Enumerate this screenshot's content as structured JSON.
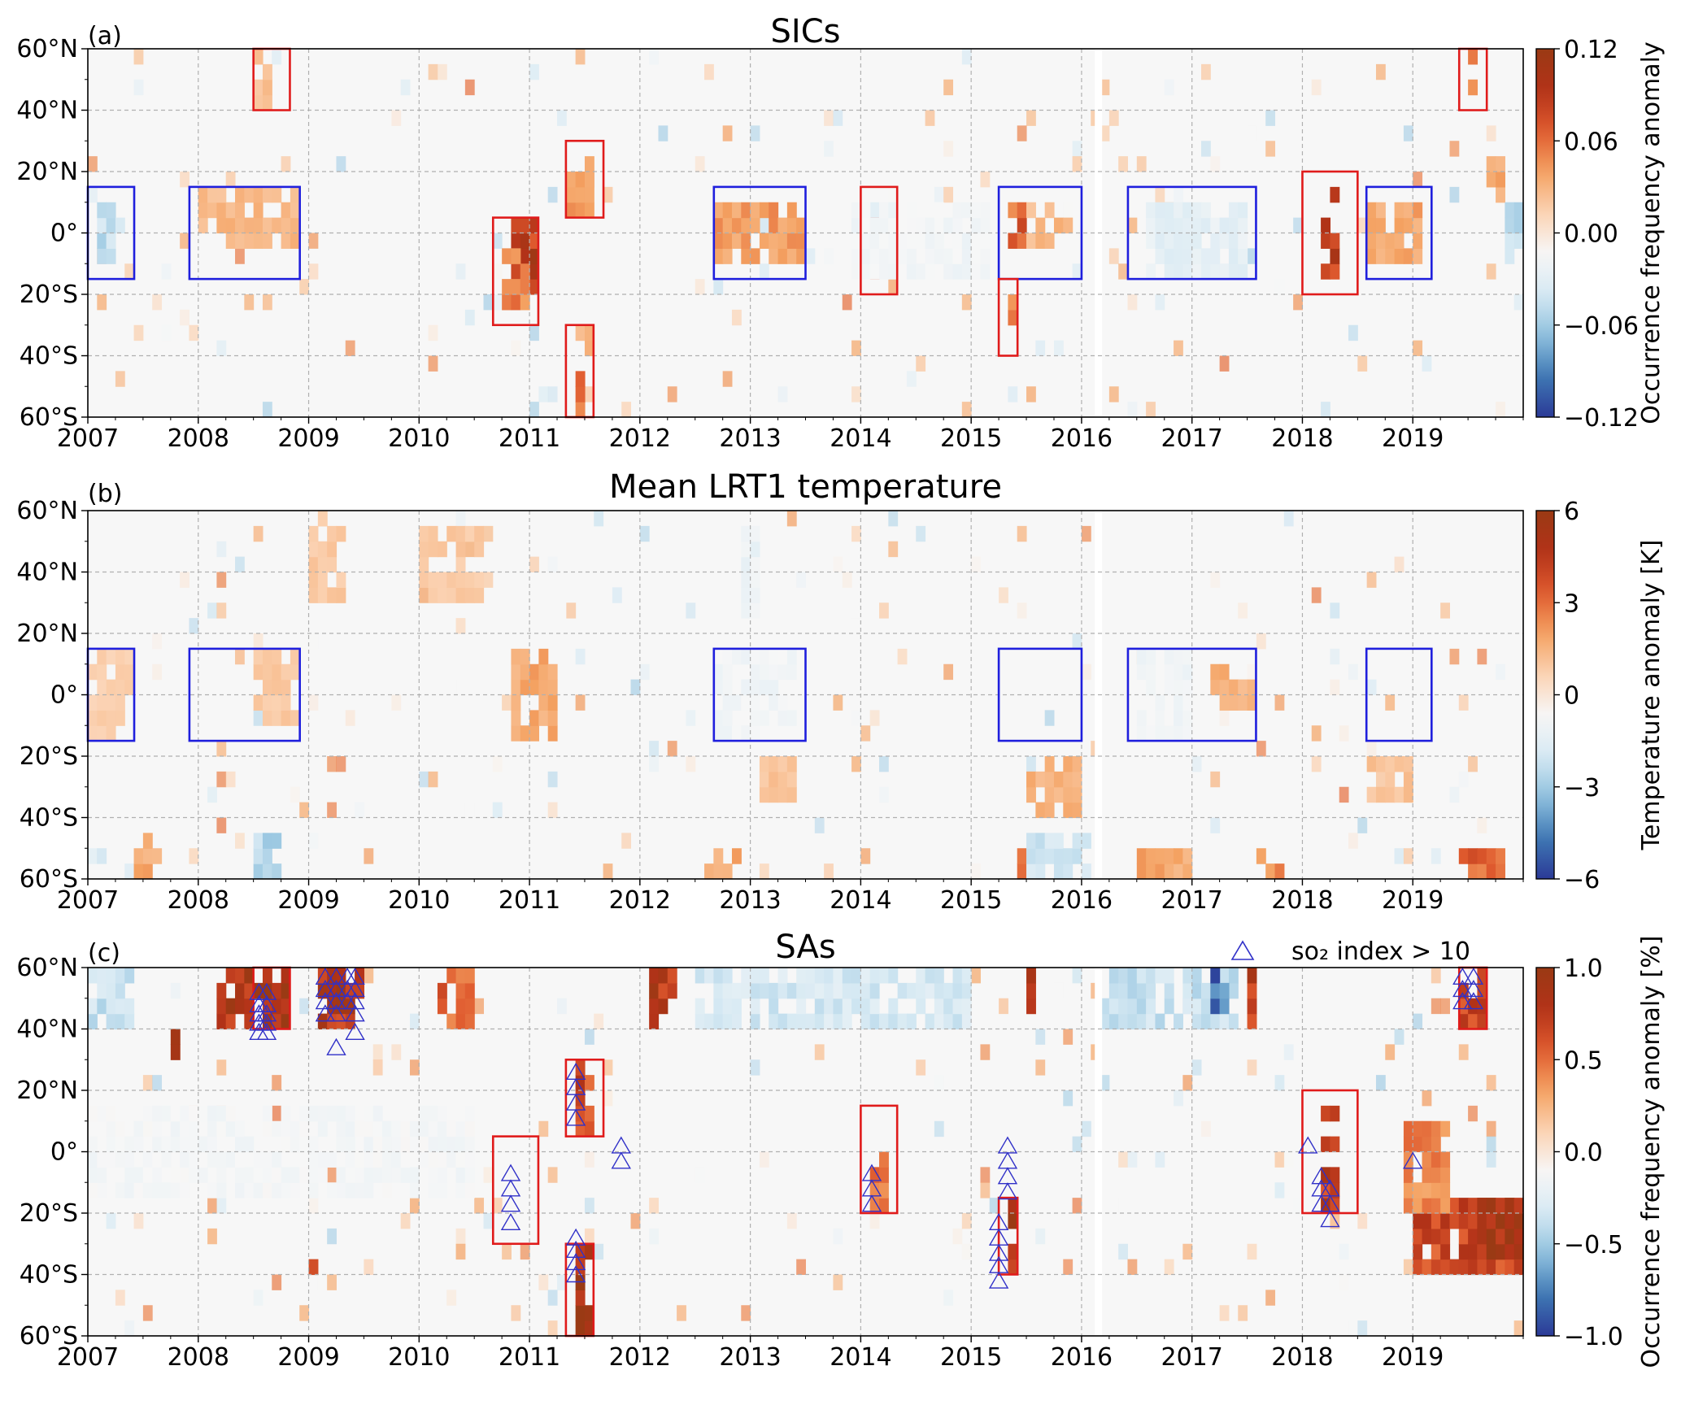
{
  "panels": [
    {
      "label": "(a)",
      "title": "SICs",
      "colorbar": {
        "label": "Occurrence frequency anomaly",
        "ticks": [
          "0.12",
          "0.06",
          "0.00",
          "−0.06",
          "−0.12"
        ],
        "min": -0.12,
        "max": 0.12
      }
    },
    {
      "label": "(b)",
      "title": "Mean LRT1 temperature",
      "colorbar": {
        "label": "Temperature anomaly [K]",
        "ticks": [
          "6",
          "3",
          "0",
          "−3",
          "−6"
        ],
        "min": -6,
        "max": 6
      }
    },
    {
      "label": "(c)",
      "title": "SAs",
      "legend": {
        "symbol": "△",
        "text": "so₂ index > 10"
      },
      "colorbar": {
        "label": "Occurrence frequency anomaly [%]",
        "ticks": [
          "1.0",
          "0.5",
          "0.0",
          "−0.5",
          "−1.0"
        ],
        "min": -1.0,
        "max": 1.0
      }
    }
  ],
  "axes": {
    "xticks": [
      "2007",
      "2008",
      "2009",
      "2010",
      "2011",
      "2012",
      "2013",
      "2014",
      "2015",
      "2016",
      "2017",
      "2018",
      "2019"
    ],
    "yticks": [
      "60°N",
      "40°N",
      "20°N",
      "0°",
      "20°S",
      "40°S",
      "60°S"
    ]
  },
  "colors": {
    "box_enso": "#1f1fdd",
    "box_volcano": "#e01b1b",
    "triangle": "#3030c8",
    "colormap": [
      "#2b3a97",
      "#3f78b4",
      "#8fc1de",
      "#d6e9f3",
      "#f7f7f7",
      "#fbd3b4",
      "#f4a262",
      "#df5a2e",
      "#b23218",
      "#9a3a14"
    ]
  },
  "chart_data": [
    {
      "type": "heatmap",
      "title": "SICs",
      "x_range": [
        2007.0,
        2020.0
      ],
      "y_range": [
        -60,
        60
      ],
      "y_unit": "latitude (degrees)",
      "color_range": [
        -0.12,
        0.12
      ],
      "enso_boxes": [
        {
          "t0": 2007.0,
          "t1": 2007.42,
          "lat0": -15,
          "lat1": 15
        },
        {
          "t0": 2007.92,
          "t1": 2008.92,
          "lat0": -15,
          "lat1": 15
        },
        {
          "t0": 2012.67,
          "t1": 2013.5,
          "lat0": -15,
          "lat1": 15
        },
        {
          "t0": 2015.25,
          "t1": 2016.0,
          "lat0": -15,
          "lat1": 15
        },
        {
          "t0": 2016.42,
          "t1": 2017.58,
          "lat0": -15,
          "lat1": 15
        },
        {
          "t0": 2018.58,
          "t1": 2019.17,
          "lat0": -15,
          "lat1": 15
        }
      ],
      "volcano_boxes": [
        {
          "t0": 2008.5,
          "t1": 2008.83,
          "lat0": 40,
          "lat1": 60
        },
        {
          "t0": 2010.67,
          "t1": 2011.08,
          "lat0": -30,
          "lat1": 5
        },
        {
          "t0": 2011.33,
          "t1": 2011.67,
          "lat0": 5,
          "lat1": 30
        },
        {
          "t0": 2011.33,
          "t1": 2011.58,
          "lat0": -60,
          "lat1": -30
        },
        {
          "t0": 2014.0,
          "t1": 2014.33,
          "lat0": -20,
          "lat1": 15
        },
        {
          "t0": 2015.25,
          "t1": 2015.42,
          "lat0": -40,
          "lat1": -15
        },
        {
          "t0": 2018.0,
          "t1": 2018.5,
          "lat0": -20,
          "lat1": 20
        },
        {
          "t0": 2019.42,
          "t1": 2019.67,
          "lat0": 40,
          "lat1": 60
        }
      ],
      "blobs": [
        {
          "t0": 2010.83,
          "t1": 2011.08,
          "lat0": -20,
          "lat1": 5,
          "v": 0.1
        },
        {
          "t0": 2010.75,
          "t1": 2011.0,
          "lat0": -25,
          "lat1": -5,
          "v": 0.06
        },
        {
          "t0": 2011.33,
          "t1": 2011.58,
          "lat0": 5,
          "lat1": 25,
          "v": 0.05
        },
        {
          "t0": 2011.4,
          "t1": 2011.5,
          "lat0": -60,
          "lat1": -45,
          "v": 0.06
        },
        {
          "t0": 2011.45,
          "t1": 2011.55,
          "lat0": -40,
          "lat1": -30,
          "v": 0.03
        },
        {
          "t0": 2014.08,
          "t1": 2014.2,
          "lat0": -15,
          "lat1": 5,
          "v": 0.08
        },
        {
          "t0": 2015.3,
          "t1": 2015.42,
          "lat0": -35,
          "lat1": -20,
          "v": 0.05
        },
        {
          "t0": 2015.3,
          "t1": 2015.5,
          "lat0": -5,
          "lat1": 10,
          "v": 0.07
        },
        {
          "t0": 2018.17,
          "t1": 2018.33,
          "lat0": -15,
          "lat1": 15,
          "v": 0.1
        },
        {
          "t0": 2019.5,
          "t1": 2019.6,
          "lat0": 42,
          "lat1": 58,
          "v": 0.05
        },
        {
          "t0": 2019.67,
          "t1": 2019.83,
          "lat0": 10,
          "lat1": 25,
          "v": 0.04
        },
        {
          "t0": 2008.5,
          "t1": 2008.7,
          "lat0": 42,
          "lat1": 58,
          "v": 0.025
        },
        {
          "t0": 2007.08,
          "t1": 2007.33,
          "lat0": -12,
          "lat1": 12,
          "v": -0.05
        },
        {
          "t0": 2016.6,
          "t1": 2017.5,
          "lat0": -15,
          "lat1": 10,
          "v": -0.03
        },
        {
          "t0": 2019.85,
          "t1": 2020.0,
          "lat0": -10,
          "lat1": 10,
          "v": -0.05
        },
        {
          "t0": 2015.5,
          "t1": 2015.9,
          "lat0": -5,
          "lat1": 10,
          "v": 0.03
        },
        {
          "t0": 2008.0,
          "t1": 2008.9,
          "lat0": -5,
          "lat1": 15,
          "v": 0.03
        },
        {
          "t0": 2012.7,
          "t1": 2013.5,
          "lat0": -12,
          "lat1": 10,
          "v": 0.045
        },
        {
          "t0": 2018.6,
          "t1": 2019.1,
          "lat0": -10,
          "lat1": 10,
          "v": 0.04
        },
        {
          "t0": 2013.9,
          "t1": 2015.2,
          "lat0": -15,
          "lat1": 10,
          "v": -0.02
        }
      ]
    },
    {
      "type": "heatmap",
      "title": "Mean LRT1 temperature",
      "x_range": [
        2007.0,
        2020.0
      ],
      "y_range": [
        -60,
        60
      ],
      "y_unit": "latitude (degrees)",
      "color_range": [
        -6,
        6
      ],
      "enso_boxes": [
        {
          "t0": 2007.0,
          "t1": 2007.42,
          "lat0": -15,
          "lat1": 15
        },
        {
          "t0": 2007.92,
          "t1": 2008.92,
          "lat0": -15,
          "lat1": 15
        },
        {
          "t0": 2012.67,
          "t1": 2013.5,
          "lat0": -15,
          "lat1": 15
        },
        {
          "t0": 2015.25,
          "t1": 2016.0,
          "lat0": -15,
          "lat1": 15
        },
        {
          "t0": 2016.42,
          "t1": 2017.58,
          "lat0": -15,
          "lat1": 15
        },
        {
          "t0": 2018.58,
          "t1": 2019.17,
          "lat0": -15,
          "lat1": 15
        }
      ],
      "volcano_boxes": [],
      "blobs": [
        {
          "t0": 2010.83,
          "t1": 2011.25,
          "lat0": -15,
          "lat1": 15,
          "v": 2.0
        },
        {
          "t0": 2017.2,
          "t1": 2017.6,
          "lat0": -5,
          "lat1": 10,
          "v": 1.8
        },
        {
          "t0": 2015.5,
          "t1": 2016.0,
          "lat0": -40,
          "lat1": -20,
          "v": 1.6
        },
        {
          "t0": 2019.42,
          "t1": 2019.85,
          "lat0": -60,
          "lat1": -48,
          "v": 3.5
        },
        {
          "t0": 2007.42,
          "t1": 2007.7,
          "lat0": -60,
          "lat1": -45,
          "v": 2.0
        },
        {
          "t0": 2015.33,
          "t1": 2015.5,
          "lat0": -60,
          "lat1": -50,
          "v": 3.0
        },
        {
          "t0": 2016.5,
          "t1": 2017.0,
          "lat0": -60,
          "lat1": -48,
          "v": 2.0
        },
        {
          "t0": 2017.58,
          "t1": 2017.8,
          "lat0": -60,
          "lat1": -50,
          "v": 2.5
        },
        {
          "t0": 2008.5,
          "t1": 2008.75,
          "lat0": -60,
          "lat1": -45,
          "v": -2.8
        },
        {
          "t0": 2015.5,
          "t1": 2016.1,
          "lat0": -60,
          "lat1": -45,
          "v": -2.5
        },
        {
          "t0": 2012.58,
          "t1": 2012.92,
          "lat0": -60,
          "lat1": -50,
          "v": 2.0
        },
        {
          "t0": 2007.0,
          "t1": 2007.42,
          "lat0": -15,
          "lat1": 15,
          "v": 0.8
        },
        {
          "t0": 2008.5,
          "t1": 2008.9,
          "lat0": -10,
          "lat1": 15,
          "v": 1.0
        },
        {
          "t0": 2012.7,
          "t1": 2013.4,
          "lat0": -15,
          "lat1": 15,
          "v": -1.0
        },
        {
          "t0": 2016.5,
          "t1": 2017.0,
          "lat0": -15,
          "lat1": 15,
          "v": -1.0
        },
        {
          "t0": 2013.1,
          "t1": 2013.4,
          "lat0": -40,
          "lat1": -20,
          "v": 1.2
        },
        {
          "t0": 2018.6,
          "t1": 2019.0,
          "lat0": -35,
          "lat1": -20,
          "v": 1.2
        },
        {
          "t0": 2009.0,
          "t1": 2009.3,
          "lat0": 30,
          "lat1": 60,
          "v": 1.0
        },
        {
          "t0": 2010.0,
          "t1": 2010.6,
          "lat0": 30,
          "lat1": 55,
          "v": 1.0
        },
        {
          "t0": 2012.9,
          "t1": 2013.1,
          "lat0": 25,
          "lat1": 55,
          "v": -1.2
        }
      ]
    },
    {
      "type": "heatmap",
      "title": "SAs",
      "x_range": [
        2007.0,
        2020.0
      ],
      "y_range": [
        -60,
        60
      ],
      "y_unit": "latitude (degrees)",
      "color_range": [
        -1.0,
        1.0
      ],
      "legend": "so₂ index > 10",
      "enso_boxes": [],
      "volcano_boxes": [
        {
          "t0": 2008.5,
          "t1": 2008.83,
          "lat0": 40,
          "lat1": 60
        },
        {
          "t0": 2010.67,
          "t1": 2011.08,
          "lat0": -30,
          "lat1": 5
        },
        {
          "t0": 2011.33,
          "t1": 2011.67,
          "lat0": 5,
          "lat1": 30
        },
        {
          "t0": 2011.33,
          "t1": 2011.58,
          "lat0": -60,
          "lat1": -30
        },
        {
          "t0": 2014.0,
          "t1": 2014.33,
          "lat0": -20,
          "lat1": 15
        },
        {
          "t0": 2015.25,
          "t1": 2015.42,
          "lat0": -40,
          "lat1": -15
        },
        {
          "t0": 2018.0,
          "t1": 2018.5,
          "lat0": -20,
          "lat1": 20
        },
        {
          "t0": 2019.42,
          "t1": 2019.67,
          "lat0": 40,
          "lat1": 60
        }
      ],
      "so2_triangles": [
        {
          "t": 2008.55,
          "lat": [
            52,
            48,
            45,
            42,
            39
          ]
        },
        {
          "t": 2008.62,
          "lat": [
            52,
            48,
            45,
            42,
            39
          ]
        },
        {
          "t": 2009.15,
          "lat": [
            57,
            53,
            49,
            45
          ]
        },
        {
          "t": 2009.25,
          "lat": [
            57,
            53,
            49,
            45,
            34
          ]
        },
        {
          "t": 2009.35,
          "lat": [
            57,
            53,
            49
          ]
        },
        {
          "t": 2009.42,
          "lat": [
            57,
            53,
            49,
            45,
            39
          ]
        },
        {
          "t": 2010.83,
          "lat": [
            -7,
            -12,
            -17,
            -23
          ]
        },
        {
          "t": 2011.42,
          "lat": [
            26,
            21,
            16,
            11
          ]
        },
        {
          "t": 2011.42,
          "lat": [
            -28,
            -32,
            -36,
            -40
          ]
        },
        {
          "t": 2011.83,
          "lat": [
            2,
            -3
          ]
        },
        {
          "t": 2014.1,
          "lat": [
            -7,
            -12,
            -17
          ]
        },
        {
          "t": 2015.25,
          "lat": [
            -23,
            -28,
            -33,
            -37,
            -42
          ]
        },
        {
          "t": 2015.33,
          "lat": [
            2,
            -3,
            -8,
            -13
          ]
        },
        {
          "t": 2018.05,
          "lat": [
            2
          ]
        },
        {
          "t": 2018.17,
          "lat": [
            -8,
            -12,
            -17
          ]
        },
        {
          "t": 2018.25,
          "lat": [
            -12,
            -17,
            -22
          ]
        },
        {
          "t": 2019.0,
          "lat": [
            -3
          ]
        },
        {
          "t": 2019.45,
          "lat": [
            57,
            53,
            49
          ]
        },
        {
          "t": 2019.55,
          "lat": [
            57,
            53,
            49
          ]
        }
      ],
      "blobs": [
        {
          "t0": 2008.17,
          "t1": 2008.5,
          "lat0": 40,
          "lat1": 60,
          "v": 0.9
        },
        {
          "t0": 2008.5,
          "t1": 2008.8,
          "lat0": 42,
          "lat1": 60,
          "v": 1.0
        },
        {
          "t0": 2009.08,
          "t1": 2009.5,
          "lat0": 40,
          "lat1": 60,
          "v": 0.85
        },
        {
          "t0": 2011.42,
          "t1": 2011.58,
          "lat0": -60,
          "lat1": -32,
          "v": 1.0
        },
        {
          "t0": 2011.42,
          "t1": 2011.55,
          "lat0": 5,
          "lat1": 28,
          "v": 0.7
        },
        {
          "t0": 2012.08,
          "t1": 2012.35,
          "lat0": 40,
          "lat1": 60,
          "v": 0.9
        },
        {
          "t0": 2014.08,
          "t1": 2014.25,
          "lat0": -20,
          "lat1": 0,
          "v": 0.5
        },
        {
          "t0": 2015.3,
          "t1": 2015.42,
          "lat0": -40,
          "lat1": -15,
          "v": 0.9
        },
        {
          "t0": 2018.17,
          "t1": 2018.33,
          "lat0": -20,
          "lat1": 15,
          "v": 0.85
        },
        {
          "t0": 2019.0,
          "t1": 2020.0,
          "lat0": -40,
          "lat1": -15,
          "v": 0.7
        },
        {
          "t0": 2019.6,
          "t1": 2020.0,
          "lat0": -35,
          "lat1": -15,
          "v": 0.95
        },
        {
          "t0": 2019.42,
          "t1": 2019.67,
          "lat0": 40,
          "lat1": 60,
          "v": 0.7
        },
        {
          "t0": 2018.9,
          "t1": 2019.3,
          "lat0": -20,
          "lat1": 10,
          "v": 0.45
        },
        {
          "t0": 2017.5,
          "t1": 2017.6,
          "lat0": 40,
          "lat1": 60,
          "v": 0.85
        },
        {
          "t0": 2015.5,
          "t1": 2015.6,
          "lat0": 45,
          "lat1": 60,
          "v": 0.9
        },
        {
          "t0": 2010.15,
          "t1": 2010.5,
          "lat0": 40,
          "lat1": 60,
          "v": 0.6
        },
        {
          "t0": 2009.0,
          "t1": 2009.1,
          "lat0": -38,
          "lat1": -28,
          "v": 0.9
        },
        {
          "t0": 2007.75,
          "t1": 2007.85,
          "lat0": 32,
          "lat1": 40,
          "v": 0.9
        },
        {
          "t0": 2007.0,
          "t1": 2010.5,
          "lat0": -15,
          "lat1": 15,
          "v": -0.15
        },
        {
          "t0": 2007.0,
          "t1": 2007.4,
          "lat0": 38,
          "lat1": 60,
          "v": -0.4
        },
        {
          "t0": 2012.5,
          "t1": 2015.0,
          "lat0": 40,
          "lat1": 60,
          "v": -0.35
        },
        {
          "t0": 2016.2,
          "t1": 2017.4,
          "lat0": 40,
          "lat1": 60,
          "v": -0.4
        },
        {
          "t0": 2017.2,
          "t1": 2017.35,
          "lat0": 45,
          "lat1": 60,
          "v": -0.9
        }
      ]
    }
  ]
}
